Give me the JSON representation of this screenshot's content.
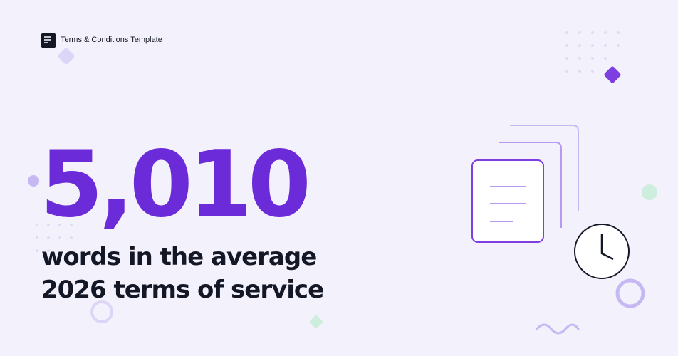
{
  "header": {
    "brand": "Terms & Conditions Template"
  },
  "stat": {
    "value": "5,010",
    "caption": [
      "words in the average",
      "2026 terms of service"
    ]
  }
}
